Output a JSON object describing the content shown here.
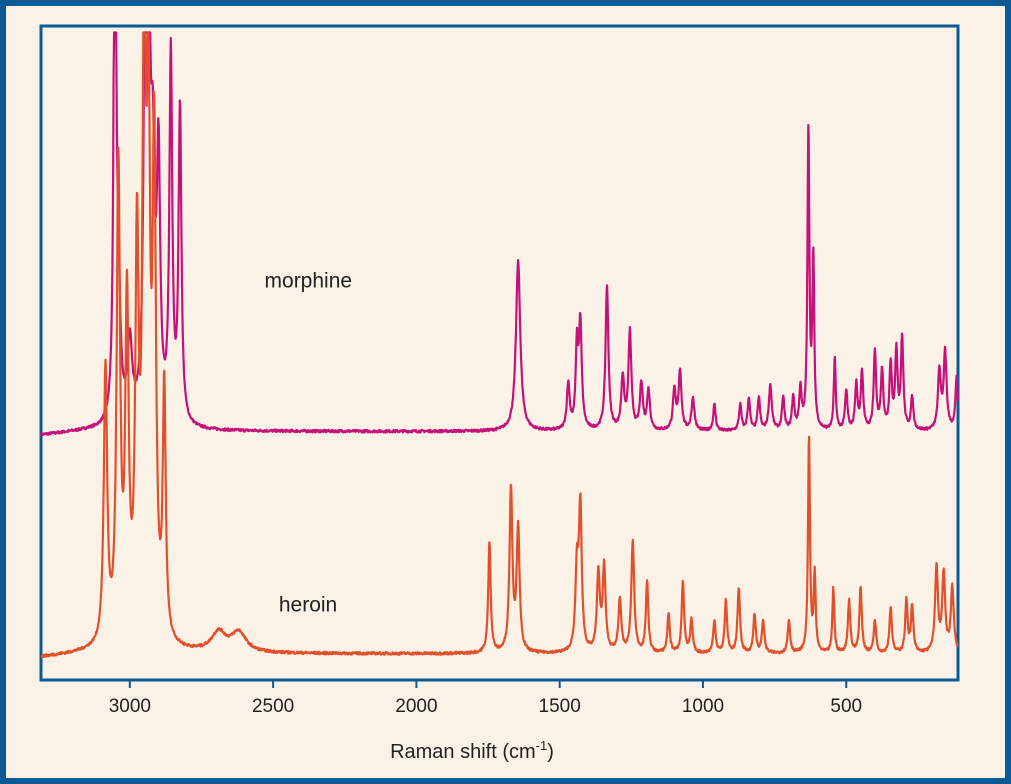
{
  "chart_data": {
    "type": "line",
    "title": "",
    "xlabel": "Raman shift (cm",
    "xlabel_superscript": "-1",
    "xlabel_suffix": ")",
    "ylabel": "",
    "xlim": [
      3310,
      110
    ],
    "x_reversed": true,
    "x_ticks": [
      "3000",
      "2500",
      "2000",
      "1500",
      "1000",
      "500"
    ],
    "x_tick_values": [
      3000,
      2500,
      2000,
      1500,
      1000,
      500
    ],
    "grid": false,
    "legend": "none (series labeled directly on plot)",
    "series": [
      {
        "name": "morphine",
        "color": "#c4127a",
        "baseline": 0.38,
        "peaks": [
          [
            3052,
            0.91,
            5
          ],
          [
            3040,
            0.18,
            8
          ],
          [
            3000,
            0.12,
            10
          ],
          [
            2945,
            0.81,
            6
          ],
          [
            2935,
            0.72,
            6
          ],
          [
            2920,
            0.33,
            8
          ],
          [
            2900,
            0.38,
            7
          ],
          [
            2857,
            0.56,
            6
          ],
          [
            2825,
            0.48,
            6
          ],
          [
            1645,
            0.26,
            9
          ],
          [
            1470,
            0.07,
            6
          ],
          [
            1440,
            0.12,
            5
          ],
          [
            1428,
            0.16,
            6
          ],
          [
            1335,
            0.22,
            6
          ],
          [
            1280,
            0.08,
            6
          ],
          [
            1255,
            0.15,
            6
          ],
          [
            1215,
            0.07,
            6
          ],
          [
            1190,
            0.06,
            6
          ],
          [
            1100,
            0.06,
            6
          ],
          [
            1080,
            0.09,
            6
          ],
          [
            1035,
            0.05,
            6
          ],
          [
            960,
            0.04,
            5
          ],
          [
            870,
            0.04,
            5
          ],
          [
            840,
            0.05,
            5
          ],
          [
            805,
            0.05,
            5
          ],
          [
            765,
            0.07,
            6
          ],
          [
            720,
            0.05,
            5
          ],
          [
            685,
            0.05,
            5
          ],
          [
            660,
            0.06,
            5
          ],
          [
            632,
            0.46,
            4
          ],
          [
            615,
            0.26,
            4
          ],
          [
            540,
            0.11,
            4
          ],
          [
            500,
            0.06,
            5
          ],
          [
            465,
            0.07,
            5
          ],
          [
            445,
            0.09,
            5
          ],
          [
            400,
            0.12,
            5
          ],
          [
            375,
            0.09,
            5
          ],
          [
            345,
            0.1,
            5
          ],
          [
            325,
            0.12,
            5
          ],
          [
            305,
            0.14,
            5
          ],
          [
            270,
            0.05,
            5
          ],
          [
            175,
            0.09,
            6
          ],
          [
            155,
            0.12,
            6
          ],
          [
            115,
            0.08,
            5
          ]
        ]
      },
      {
        "name": "heroin",
        "color": "#e2502b",
        "baseline": 0.41,
        "peaks": [
          [
            3085,
            0.42,
            7
          ],
          [
            3040,
            0.72,
            7
          ],
          [
            3010,
            0.5,
            7
          ],
          [
            2975,
            0.58,
            7
          ],
          [
            2950,
            0.92,
            7
          ],
          [
            2935,
            0.7,
            7
          ],
          [
            2915,
            0.72,
            7
          ],
          [
            2880,
            0.38,
            6
          ],
          [
            2690,
            0.03,
            30
          ],
          [
            2620,
            0.03,
            30
          ],
          [
            1745,
            0.17,
            5
          ],
          [
            1670,
            0.25,
            6
          ],
          [
            1645,
            0.19,
            6
          ],
          [
            1440,
            0.12,
            6
          ],
          [
            1428,
            0.22,
            6
          ],
          [
            1365,
            0.12,
            6
          ],
          [
            1345,
            0.13,
            6
          ],
          [
            1290,
            0.08,
            6
          ],
          [
            1245,
            0.17,
            6
          ],
          [
            1195,
            0.11,
            5
          ],
          [
            1120,
            0.06,
            5
          ],
          [
            1070,
            0.11,
            5
          ],
          [
            1040,
            0.05,
            5
          ],
          [
            960,
            0.05,
            5
          ],
          [
            920,
            0.08,
            5
          ],
          [
            875,
            0.1,
            5
          ],
          [
            820,
            0.06,
            5
          ],
          [
            790,
            0.05,
            5
          ],
          [
            700,
            0.05,
            5
          ],
          [
            630,
            0.33,
            4
          ],
          [
            610,
            0.12,
            4
          ],
          [
            545,
            0.1,
            4
          ],
          [
            490,
            0.08,
            5
          ],
          [
            450,
            0.1,
            5
          ],
          [
            400,
            0.05,
            5
          ],
          [
            345,
            0.07,
            5
          ],
          [
            290,
            0.08,
            5
          ],
          [
            270,
            0.07,
            5
          ],
          [
            185,
            0.13,
            6
          ],
          [
            160,
            0.12,
            6
          ],
          [
            130,
            0.1,
            6
          ]
        ]
      }
    ]
  }
}
